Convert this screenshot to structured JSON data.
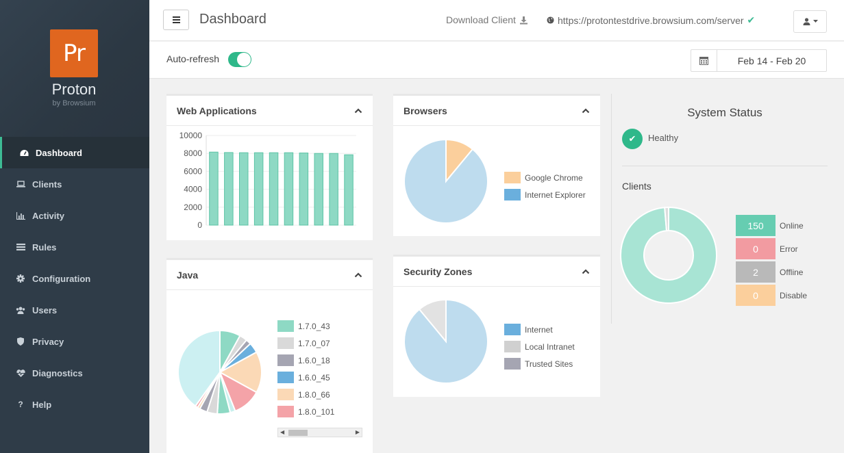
{
  "app": {
    "logo_text": "Pr",
    "brand_name": "Proton",
    "brand_sub": "by Browsium"
  },
  "sidebar": {
    "items": [
      {
        "label": "Dashboard",
        "icon": "dashboard-icon",
        "active": true
      },
      {
        "label": "Clients",
        "icon": "laptop-icon"
      },
      {
        "label": "Activity",
        "icon": "bar-chart-icon"
      },
      {
        "label": "Rules",
        "icon": "list-icon"
      },
      {
        "label": "Configuration",
        "icon": "gear-icon"
      },
      {
        "label": "Users",
        "icon": "users-icon"
      },
      {
        "label": "Privacy",
        "icon": "shield-icon"
      },
      {
        "label": "Diagnostics",
        "icon": "heartbeat-icon"
      },
      {
        "label": "Help",
        "icon": "question-icon"
      }
    ]
  },
  "header": {
    "title": "Dashboard",
    "download_label": "Download Client",
    "server_url": "https://protontestdrive.browsium.com/server",
    "autorefresh_label": "Auto-refresh",
    "autorefresh_on": true,
    "date_range": "Feb 14 - Feb 20"
  },
  "panels": {
    "web_apps": {
      "title": "Web Applications"
    },
    "browsers": {
      "title": "Browsers"
    },
    "java": {
      "title": "Java"
    },
    "security_zones": {
      "title": "Security Zones"
    }
  },
  "chart_data": [
    {
      "id": "web_apps",
      "type": "bar",
      "categories": [
        "",
        "",
        "",
        "",
        "",
        "",
        "",
        "",
        "",
        ""
      ],
      "values": [
        8150,
        8100,
        8080,
        8080,
        8080,
        8080,
        8050,
        8000,
        8000,
        7850
      ],
      "ylim": [
        0,
        10000
      ],
      "yticks": [
        "0",
        "2000",
        "4000",
        "6000",
        "8000",
        "10000"
      ],
      "color": "#8ed9c4",
      "grid": true
    },
    {
      "id": "browsers",
      "type": "pie",
      "series": [
        {
          "name": "Google Chrome",
          "value": 11,
          "color": "#fbcf9c"
        },
        {
          "name": "Internet Explorer",
          "value": 89,
          "color": "#bedcee"
        }
      ],
      "legend_colors": [
        "#fbcf9c",
        "#6aafdd"
      ],
      "legend": "right"
    },
    {
      "id": "security_zones",
      "type": "pie",
      "series": [
        {
          "name": "Internet",
          "value": 89,
          "color": "#bedcee"
        },
        {
          "name": "Local Intranet",
          "value": 11,
          "color": "#e2e2e2"
        },
        {
          "name": "Trusted Sites",
          "value": 0,
          "color": "#a5a5b2"
        }
      ],
      "legend_colors": [
        "#6aafdd",
        "#d0d0d0",
        "#a5a5b2"
      ],
      "legend": "right"
    },
    {
      "id": "java",
      "type": "pie",
      "series": [
        {
          "name": "1.7.0_43",
          "value": 8,
          "color": "#8ed9c4"
        },
        {
          "name": "1.7.0_07",
          "value": 3,
          "color": "#d9d9d9"
        },
        {
          "name": "1.6.0_18",
          "value": 2,
          "color": "#a5a5b2"
        },
        {
          "name": "1.6.0_45",
          "value": 4,
          "color": "#6aafdd"
        },
        {
          "name": "1.8.0_66",
          "value": 16,
          "color": "#fbd9b6"
        },
        {
          "name": "1.8.0_101",
          "value": 11,
          "color": "#f4a3a8"
        },
        {
          "name": "",
          "value": 2,
          "color": "#c9f0ee"
        },
        {
          "name": "",
          "value": 5,
          "color": "#8ed9c4"
        },
        {
          "name": "",
          "value": 4,
          "color": "#d9d9d9"
        },
        {
          "name": "",
          "value": 3,
          "color": "#a5a5b2"
        },
        {
          "name": "",
          "value": 1,
          "color": "#fbd9b6"
        },
        {
          "name": "",
          "value": 1,
          "color": "#f4a3a8"
        },
        {
          "name": "",
          "value": 40,
          "color": "#ccf0f2"
        }
      ],
      "legend": "right"
    },
    {
      "id": "clients",
      "type": "pie",
      "donut": true,
      "series": [
        {
          "name": "Online",
          "value": 150,
          "color": "#a8e4d4"
        },
        {
          "name": "Error",
          "value": 0,
          "color": "#f29ba1"
        },
        {
          "name": "Offline",
          "value": 2,
          "color": "#dddddd"
        },
        {
          "name": "Disable",
          "value": 0,
          "color": "#fbcf9c"
        }
      ]
    }
  ],
  "system_status": {
    "title": "System Status",
    "health": "Healthy",
    "clients_title": "Clients",
    "counts": [
      {
        "label": "Online",
        "value": "150",
        "color": "#66cdb1"
      },
      {
        "label": "Error",
        "value": "0",
        "color": "#f29ba1"
      },
      {
        "label": "Offline",
        "value": "2",
        "color": "#b9b9b9"
      },
      {
        "label": "Disable",
        "value": "0",
        "color": "#fbcf9c"
      }
    ]
  }
}
